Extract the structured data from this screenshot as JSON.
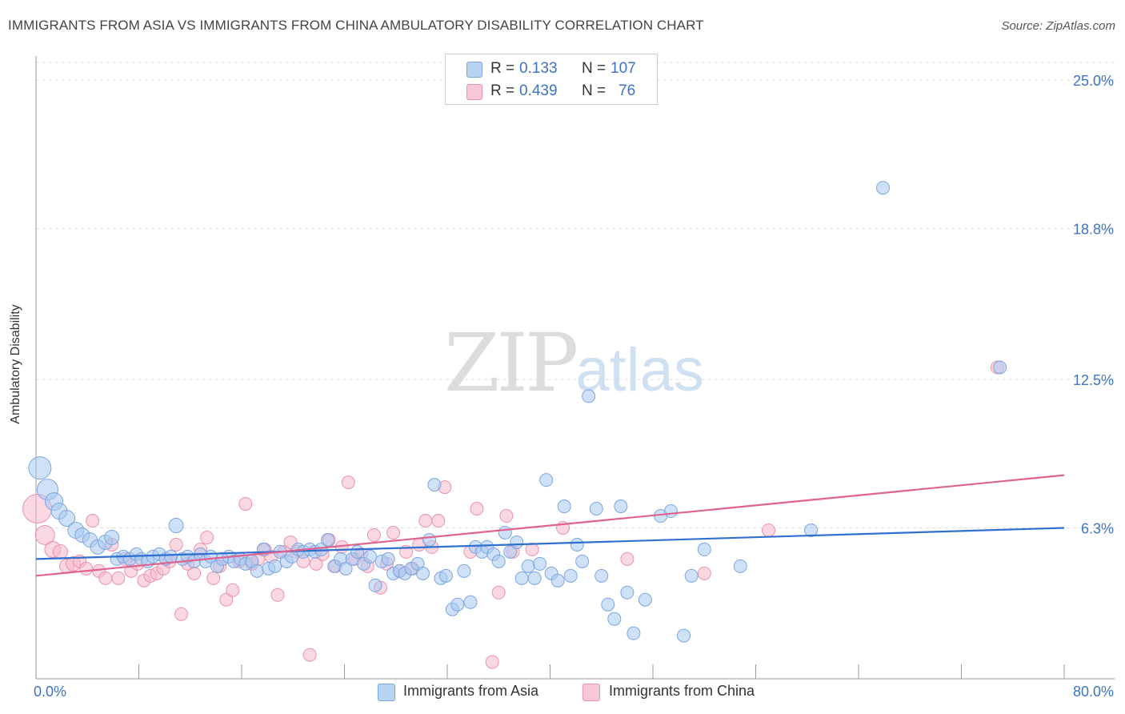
{
  "header": {
    "title": "IMMIGRANTS FROM ASIA VS IMMIGRANTS FROM CHINA AMBULATORY DISABILITY CORRELATION CHART",
    "source": "Source: ZipAtlas.com"
  },
  "watermark": {
    "zip": "ZIP",
    "atlas": "atlas"
  },
  "legend": {
    "rows": [
      {
        "r_label": "R =",
        "r_value": "0.133",
        "n_label": "N =",
        "n_value": "107"
      },
      {
        "r_label": "R =",
        "r_value": "0.439",
        "n_label": "N =",
        "n_value": "76"
      }
    ]
  },
  "colors": {
    "asia_fill": "#a8c8f0",
    "asia_stroke": "#7aa6e0",
    "asia_line": "#2f6fcf",
    "china_fill": "#f6b8cb",
    "china_stroke": "#ec92ad",
    "china_line": "#e0628e",
    "axis_label": "#3d73c8",
    "grid": "#dddddd"
  },
  "chart_data": {
    "type": "scatter",
    "title": "IMMIGRANTS FROM ASIA VS IMMIGRANTS FROM CHINA AMBULATORY DISABILITY CORRELATION CHART",
    "xlabel": "",
    "ylabel": "Ambulatory Disability",
    "xlim": [
      0,
      80
    ],
    "ylim": [
      0,
      26
    ],
    "x_tick_labels": [
      "0.0%",
      "80.0%"
    ],
    "y_ticks": [
      6.3,
      12.5,
      18.8,
      25.0
    ],
    "y_tick_labels": [
      "6.3%",
      "12.5%",
      "18.8%",
      "25.0%"
    ],
    "grid": true,
    "legend_position": "top-center",
    "series": [
      {
        "name": "Immigrants from Asia",
        "r": 0.133,
        "n": 107,
        "trend": {
          "x": [
            0,
            80
          ],
          "y": [
            5.0,
            6.3
          ]
        },
        "points": [
          [
            0.3,
            8.8,
            14
          ],
          [
            0.9,
            7.9,
            13
          ],
          [
            1.4,
            7.4,
            11
          ],
          [
            1.8,
            7.0,
            10
          ],
          [
            2.4,
            6.7,
            10
          ],
          [
            3.1,
            6.2,
            10
          ],
          [
            3.6,
            6.0,
            9
          ],
          [
            4.2,
            5.8,
            9
          ],
          [
            4.8,
            5.5,
            9
          ],
          [
            5.4,
            5.7,
            9
          ],
          [
            5.9,
            5.9,
            9
          ],
          [
            6.3,
            5.0,
            8
          ],
          [
            6.8,
            5.1,
            8
          ],
          [
            7.3,
            5.0,
            8
          ],
          [
            7.8,
            5.2,
            8
          ],
          [
            8.2,
            5.0,
            8
          ],
          [
            8.7,
            4.9,
            8
          ],
          [
            9.1,
            5.1,
            8
          ],
          [
            9.6,
            5.2,
            8
          ],
          [
            10.1,
            5.0,
            8
          ],
          [
            10.5,
            5.1,
            8
          ],
          [
            10.9,
            6.4,
            9
          ],
          [
            11.4,
            5.0,
            8
          ],
          [
            11.8,
            5.1,
            8
          ],
          [
            12.3,
            4.9,
            8
          ],
          [
            12.8,
            5.2,
            8
          ],
          [
            13.2,
            4.9,
            8
          ],
          [
            13.6,
            5.1,
            8
          ],
          [
            14.1,
            4.7,
            8
          ],
          [
            14.5,
            5.0,
            8
          ],
          [
            15.0,
            5.1,
            8
          ],
          [
            15.4,
            4.9,
            8
          ],
          [
            15.9,
            5.0,
            8
          ],
          [
            16.3,
            4.8,
            8
          ],
          [
            16.8,
            4.9,
            8
          ],
          [
            17.2,
            4.5,
            8
          ],
          [
            17.7,
            5.4,
            8
          ],
          [
            18.1,
            4.6,
            8
          ],
          [
            18.6,
            4.7,
            8
          ],
          [
            19.0,
            5.3,
            8
          ],
          [
            19.5,
            4.9,
            8
          ],
          [
            19.9,
            5.1,
            8
          ],
          [
            20.4,
            5.4,
            8
          ],
          [
            20.8,
            5.3,
            8
          ],
          [
            21.3,
            5.4,
            8
          ],
          [
            21.7,
            5.3,
            8
          ],
          [
            22.2,
            5.4,
            8
          ],
          [
            22.7,
            5.8,
            8
          ],
          [
            23.2,
            4.7,
            8
          ],
          [
            23.7,
            5.0,
            8
          ],
          [
            24.1,
            4.6,
            8
          ],
          [
            24.6,
            5.0,
            8
          ],
          [
            25.0,
            5.3,
            8
          ],
          [
            25.5,
            4.8,
            8
          ],
          [
            26.0,
            5.1,
            8
          ],
          [
            26.4,
            3.9,
            8
          ],
          [
            26.9,
            4.9,
            8
          ],
          [
            27.4,
            5.0,
            8
          ],
          [
            27.8,
            4.4,
            8
          ],
          [
            28.3,
            4.5,
            8
          ],
          [
            28.7,
            4.4,
            8
          ],
          [
            29.2,
            4.6,
            8
          ],
          [
            29.7,
            4.8,
            8
          ],
          [
            30.1,
            4.4,
            8
          ],
          [
            30.6,
            5.8,
            8
          ],
          [
            31.0,
            8.1,
            8
          ],
          [
            31.5,
            4.2,
            8
          ],
          [
            31.9,
            4.3,
            8
          ],
          [
            32.4,
            2.9,
            8
          ],
          [
            32.8,
            3.1,
            8
          ],
          [
            33.3,
            4.5,
            8
          ],
          [
            33.8,
            3.2,
            8
          ],
          [
            34.2,
            5.5,
            8
          ],
          [
            34.7,
            5.3,
            8
          ],
          [
            35.1,
            5.5,
            8
          ],
          [
            35.6,
            5.2,
            8
          ],
          [
            36.0,
            4.9,
            8
          ],
          [
            36.5,
            6.1,
            8
          ],
          [
            36.9,
            5.3,
            8
          ],
          [
            37.4,
            5.7,
            8
          ],
          [
            37.8,
            4.2,
            8
          ],
          [
            38.3,
            4.7,
            8
          ],
          [
            38.8,
            4.2,
            8
          ],
          [
            39.2,
            4.8,
            8
          ],
          [
            39.7,
            8.3,
            8
          ],
          [
            40.1,
            4.4,
            8
          ],
          [
            40.6,
            4.1,
            8
          ],
          [
            41.1,
            7.2,
            8
          ],
          [
            41.6,
            4.3,
            8
          ],
          [
            42.1,
            5.6,
            8
          ],
          [
            42.5,
            4.9,
            8
          ],
          [
            43.0,
            11.8,
            8
          ],
          [
            43.6,
            7.1,
            8
          ],
          [
            44.0,
            4.3,
            8
          ],
          [
            44.5,
            3.1,
            8
          ],
          [
            45.0,
            2.5,
            8
          ],
          [
            45.5,
            7.2,
            8
          ],
          [
            46.0,
            3.6,
            8
          ],
          [
            46.5,
            1.9,
            8
          ],
          [
            47.4,
            3.3,
            8
          ],
          [
            48.6,
            6.8,
            8
          ],
          [
            49.4,
            7.0,
            8
          ],
          [
            50.4,
            1.8,
            8
          ],
          [
            51.0,
            4.3,
            8
          ],
          [
            52.0,
            5.4,
            8
          ],
          [
            54.8,
            4.7,
            8
          ],
          [
            60.3,
            6.2,
            8
          ],
          [
            65.9,
            20.5,
            8
          ],
          [
            75.0,
            13.0,
            8
          ]
        ]
      },
      {
        "name": "Immigrants from China",
        "r": 0.439,
        "n": 76,
        "trend": {
          "x": [
            0,
            80
          ],
          "y": [
            4.3,
            8.5
          ]
        },
        "points": [
          [
            0.1,
            7.1,
            18
          ],
          [
            0.7,
            6.0,
            12
          ],
          [
            1.3,
            5.4,
            10
          ],
          [
            1.9,
            5.3,
            9
          ],
          [
            2.4,
            4.7,
            9
          ],
          [
            2.9,
            4.8,
            9
          ],
          [
            3.4,
            4.9,
            8
          ],
          [
            3.9,
            4.6,
            8
          ],
          [
            4.4,
            6.6,
            8
          ],
          [
            4.9,
            4.5,
            8
          ],
          [
            5.4,
            4.2,
            8
          ],
          [
            5.9,
            5.6,
            8
          ],
          [
            6.4,
            4.2,
            8
          ],
          [
            6.9,
            5.0,
            8
          ],
          [
            7.4,
            4.5,
            8
          ],
          [
            7.9,
            4.8,
            8
          ],
          [
            8.4,
            4.1,
            8
          ],
          [
            8.9,
            4.3,
            8
          ],
          [
            9.4,
            4.4,
            8
          ],
          [
            9.9,
            4.6,
            8
          ],
          [
            10.4,
            4.9,
            8
          ],
          [
            10.9,
            5.6,
            8
          ],
          [
            11.3,
            2.7,
            8
          ],
          [
            11.8,
            4.8,
            8
          ],
          [
            12.3,
            4.4,
            8
          ],
          [
            12.8,
            5.4,
            8
          ],
          [
            13.3,
            5.9,
            8
          ],
          [
            13.8,
            4.2,
            8
          ],
          [
            14.3,
            4.7,
            8
          ],
          [
            14.8,
            3.3,
            8
          ],
          [
            15.3,
            3.7,
            8
          ],
          [
            15.8,
            4.9,
            8
          ],
          [
            16.3,
            7.3,
            8
          ],
          [
            16.8,
            4.8,
            8
          ],
          [
            17.3,
            5.0,
            8
          ],
          [
            17.8,
            5.4,
            8
          ],
          [
            18.3,
            5.1,
            8
          ],
          [
            18.8,
            3.5,
            8
          ],
          [
            19.3,
            5.3,
            8
          ],
          [
            19.8,
            5.7,
            8
          ],
          [
            20.3,
            5.3,
            8
          ],
          [
            20.8,
            4.9,
            8
          ],
          [
            21.3,
            1.0,
            8
          ],
          [
            21.8,
            4.8,
            8
          ],
          [
            22.3,
            5.2,
            8
          ],
          [
            22.8,
            5.8,
            8
          ],
          [
            23.3,
            4.7,
            8
          ],
          [
            23.8,
            5.5,
            8
          ],
          [
            24.3,
            8.2,
            8
          ],
          [
            24.8,
            5.0,
            8
          ],
          [
            25.3,
            5.2,
            8
          ],
          [
            25.8,
            4.7,
            8
          ],
          [
            26.3,
            6.0,
            8
          ],
          [
            26.8,
            3.8,
            8
          ],
          [
            27.3,
            4.8,
            8
          ],
          [
            27.8,
            6.1,
            8
          ],
          [
            28.3,
            4.5,
            8
          ],
          [
            28.8,
            5.3,
            8
          ],
          [
            29.3,
            4.6,
            8
          ],
          [
            29.8,
            5.6,
            8
          ],
          [
            30.3,
            6.6,
            8
          ],
          [
            30.8,
            5.5,
            8
          ],
          [
            31.3,
            6.6,
            8
          ],
          [
            31.8,
            8.0,
            8
          ],
          [
            33.8,
            5.3,
            8
          ],
          [
            34.3,
            7.1,
            8
          ],
          [
            35.5,
            0.7,
            8
          ],
          [
            36.0,
            3.6,
            8
          ],
          [
            36.6,
            6.8,
            8
          ],
          [
            37.1,
            5.3,
            8
          ],
          [
            38.6,
            5.4,
            8
          ],
          [
            41.0,
            6.3,
            8
          ],
          [
            46.0,
            5.0,
            8
          ],
          [
            52.0,
            4.4,
            8
          ],
          [
            57.0,
            6.2,
            8
          ],
          [
            74.8,
            13.0,
            8
          ]
        ]
      }
    ]
  },
  "bottom_legend": {
    "items": [
      {
        "label": "Immigrants from Asia"
      },
      {
        "label": "Immigrants from China"
      }
    ]
  }
}
